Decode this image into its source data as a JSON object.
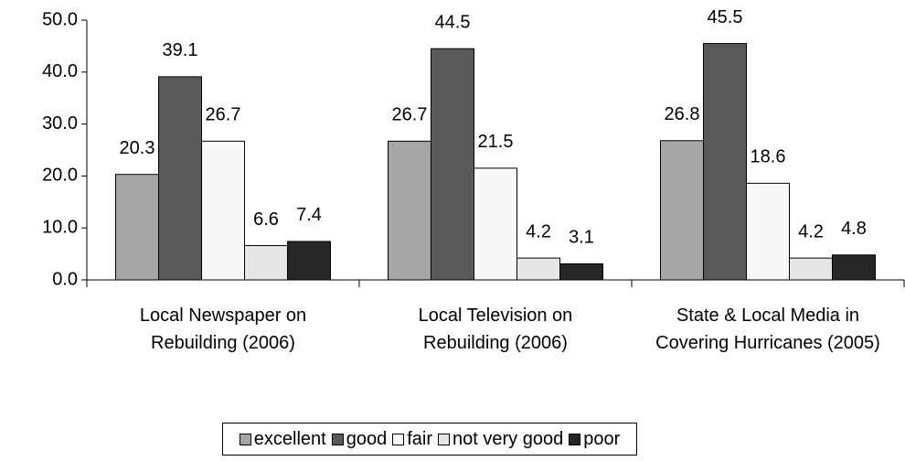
{
  "chart_data": {
    "type": "bar",
    "categories": [
      "Local Newspaper on Rebuilding (2006)",
      "Local Television on Rebuilding (2006)",
      "State & Local Media in Covering Hurricanes (2005)"
    ],
    "series": [
      {
        "name": "excellent",
        "color": "#a6a6a6",
        "values": [
          20.3,
          26.7,
          26.8
        ]
      },
      {
        "name": "good",
        "color": "#595959",
        "values": [
          39.1,
          44.5,
          45.5
        ]
      },
      {
        "name": "fair",
        "color": "#f8f8f8",
        "values": [
          26.7,
          21.5,
          18.6
        ]
      },
      {
        "name": "not very good",
        "color": "#e6e6e6",
        "values": [
          6.6,
          4.2,
          4.2
        ]
      },
      {
        "name": "poor",
        "color": "#262626",
        "values": [
          7.4,
          3.1,
          4.8
        ]
      }
    ],
    "ylim": [
      0,
      50
    ],
    "yticks": [
      {
        "value": 0,
        "label": "0.0"
      },
      {
        "value": 10,
        "label": "10.0"
      },
      {
        "value": 20,
        "label": "20.0"
      },
      {
        "value": 30,
        "label": "30.0"
      },
      {
        "value": 40,
        "label": "40.0"
      },
      {
        "value": 50,
        "label": "50.0"
      }
    ],
    "grid": false,
    "legend": "bottom"
  }
}
